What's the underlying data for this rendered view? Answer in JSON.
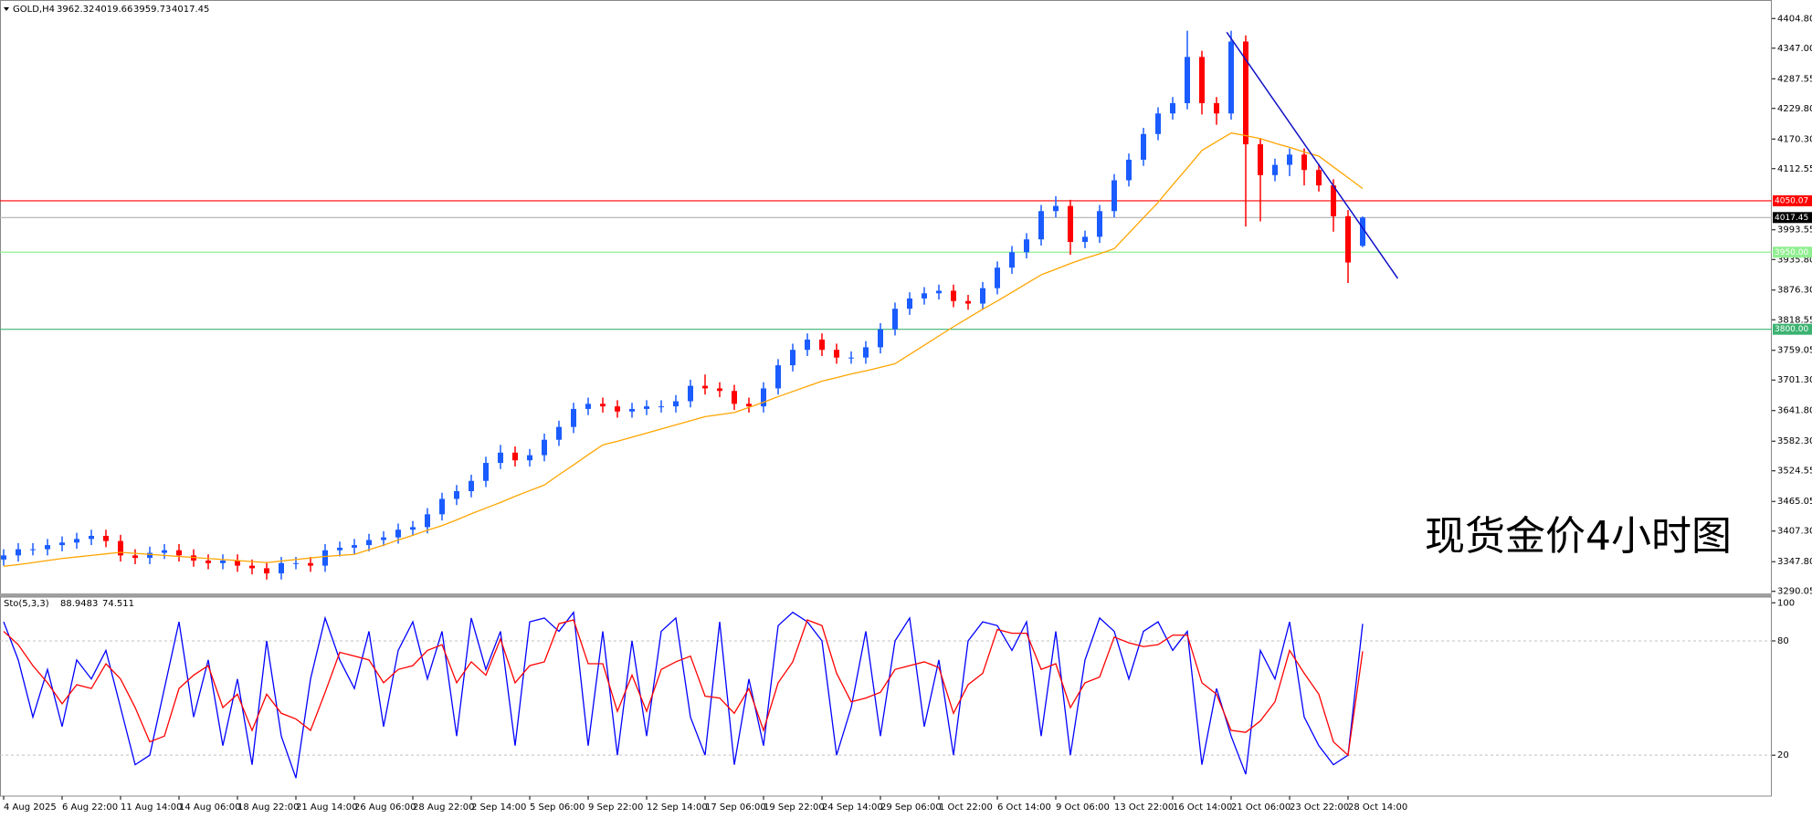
{
  "chart_data": {
    "type": "candlestick",
    "symbol": "GOLD,H4",
    "annotation": "现货金价4小时图",
    "up_color": "#1a5cff",
    "down_color": "#ff0000",
    "categories": [
      "4 Aug 2025",
      null,
      null,
      null,
      "6 Aug 22:00",
      null,
      null,
      null,
      "11 Aug 14:00",
      null,
      null,
      null,
      "14 Aug 06:00",
      null,
      null,
      null,
      "18 Aug 22:00",
      null,
      null,
      null,
      "21 Aug 14:00",
      null,
      null,
      null,
      "26 Aug 06:00",
      null,
      null,
      null,
      "28 Aug 22:00",
      null,
      null,
      null,
      "2 Sep 14:00",
      null,
      null,
      null,
      "5 Sep 06:00",
      null,
      null,
      null,
      "9 Sep 22:00",
      null,
      null,
      null,
      "12 Sep 14:00",
      null,
      null,
      null,
      "17 Sep 06:00",
      null,
      null,
      null,
      "19 Sep 22:00",
      null,
      null,
      null,
      "24 Sep 14:00",
      null,
      null,
      null,
      "29 Sep 06:00",
      null,
      null,
      null,
      "1 Oct 22:00",
      null,
      null,
      null,
      "6 Oct 14:00",
      null,
      null,
      null,
      "9 Oct 06:00",
      null,
      null,
      null,
      "13 Oct 22:00",
      null,
      null,
      null,
      "16 Oct 14:00",
      null,
      null,
      null,
      "21 Oct 06:00",
      null,
      null,
      null,
      "23 Oct 22:00",
      null,
      null,
      null,
      "28 Oct 14:00",
      null
    ],
    "open": [
      3352,
      3360,
      3372,
      3372,
      3380,
      3385,
      3392,
      3398,
      3388,
      3360,
      3355,
      3365,
      3370,
      3360,
      3350,
      3345,
      3350,
      3340,
      3335,
      3325,
      3345,
      3345,
      3340,
      3370,
      3375,
      3380,
      3390,
      3395,
      3410,
      3415,
      3440,
      3470,
      3485,
      3505,
      3540,
      3560,
      3545,
      3555,
      3585,
      3610,
      3645,
      3655,
      3650,
      3640,
      3645,
      3650,
      3650,
      3660,
      3690,
      3685,
      3680,
      3655,
      3650,
      3685,
      3730,
      3760,
      3780,
      3760,
      3745,
      3745,
      3765,
      3800,
      3840,
      3860,
      3870,
      3875,
      3855,
      3850,
      3880,
      3920,
      3950,
      3975,
      4030,
      4040,
      3970,
      3980,
      4030,
      4090,
      4130,
      4180,
      4220,
      4240,
      4330,
      4240,
      4220,
      4360,
      4160,
      4100,
      4120,
      4140,
      4110,
      4080,
      4020,
      3962.32
    ],
    "high": [
      3372,
      3384,
      3384,
      3392,
      3397,
      3404,
      3410,
      3410,
      3400,
      3372,
      3377,
      3382,
      3382,
      3372,
      3362,
      3362,
      3362,
      3352,
      3347,
      3357,
      3357,
      3357,
      3382,
      3387,
      3392,
      3402,
      3407,
      3422,
      3427,
      3452,
      3482,
      3497,
      3517,
      3552,
      3575,
      3572,
      3567,
      3597,
      3622,
      3657,
      3667,
      3667,
      3662,
      3657,
      3662,
      3662,
      3672,
      3702,
      3712,
      3697,
      3692,
      3667,
      3697,
      3742,
      3772,
      3792,
      3792,
      3772,
      3757,
      3777,
      3812,
      3852,
      3872,
      3882,
      3887,
      3887,
      3867,
      3892,
      3932,
      3962,
      3987,
      4042,
      4059,
      4052,
      3992,
      4042,
      4102,
      4142,
      4192,
      4232,
      4252,
      4381,
      4342,
      4252,
      4381,
      4372,
      4172,
      4132,
      4152,
      4152,
      4122,
      4092,
      4032,
      4019.66
    ],
    "low": [
      3340,
      3348,
      3360,
      3360,
      3368,
      3373,
      3380,
      3376,
      3348,
      3343,
      3343,
      3353,
      3348,
      3338,
      3333,
      3333,
      3328,
      3323,
      3313,
      3313,
      3333,
      3328,
      3328,
      3358,
      3363,
      3368,
      3378,
      3383,
      3398,
      3403,
      3428,
      3458,
      3473,
      3493,
      3528,
      3533,
      3533,
      3543,
      3573,
      3598,
      3633,
      3638,
      3628,
      3628,
      3633,
      3638,
      3638,
      3648,
      3673,
      3668,
      3643,
      3638,
      3638,
      3673,
      3718,
      3748,
      3748,
      3733,
      3733,
      3733,
      3753,
      3788,
      3828,
      3848,
      3858,
      3843,
      3838,
      3838,
      3868,
      3908,
      3938,
      3963,
      4018,
      3945,
      3958,
      3968,
      4018,
      4078,
      4118,
      4168,
      4208,
      4228,
      4218,
      4198,
      4208,
      4000,
      4010,
      4088,
      4098,
      4080,
      4068,
      3990,
      3890,
      3959.73
    ],
    "close": [
      3360,
      3372,
      3372,
      3380,
      3385,
      3392,
      3398,
      3388,
      3360,
      3355,
      3365,
      3370,
      3360,
      3350,
      3345,
      3350,
      3340,
      3335,
      3325,
      3345,
      3345,
      3340,
      3370,
      3375,
      3380,
      3390,
      3395,
      3410,
      3415,
      3440,
      3470,
      3485,
      3505,
      3540,
      3560,
      3545,
      3555,
      3585,
      3610,
      3645,
      3655,
      3650,
      3640,
      3645,
      3650,
      3650,
      3660,
      3690,
      3685,
      3680,
      3655,
      3650,
      3685,
      3730,
      3760,
      3780,
      3760,
      3745,
      3745,
      3765,
      3800,
      3840,
      3860,
      3870,
      3875,
      3855,
      3850,
      3880,
      3920,
      3950,
      3975,
      4030,
      4040,
      3970,
      3980,
      4030,
      4090,
      4130,
      4180,
      4220,
      4240,
      4330,
      4240,
      4220,
      4360,
      4160,
      4100,
      4120,
      4140,
      4110,
      4080,
      4020,
      3930,
      4017.45
    ],
    "ma": {
      "color": "#ffa500",
      "values": [
        3339,
        3342,
        3346,
        3350,
        3354,
        3357,
        3360,
        3363,
        3366,
        3364,
        3362,
        3360,
        3358,
        3356,
        3354,
        3352,
        3350,
        3348,
        3346,
        3349,
        3352,
        3355,
        3358,
        3360,
        3362,
        3371,
        3380,
        3390,
        3399,
        3409,
        3418,
        3429,
        3441,
        3452,
        3463,
        3475,
        3486,
        3497,
        3517,
        3536,
        3556,
        3575,
        3582,
        3590,
        3598,
        3606,
        3614,
        3622,
        3630,
        3634,
        3638,
        3648,
        3658,
        3669,
        3679,
        3689,
        3699,
        3706,
        3713,
        3719,
        3726,
        3733,
        3751,
        3769,
        3787,
        3805,
        3822,
        3839,
        3855,
        3872,
        3889,
        3906,
        3917,
        3928,
        3938,
        3947,
        3957,
        3987,
        4017,
        4047,
        4081,
        4114,
        4148,
        4165,
        4182,
        4177,
        4171,
        4162,
        4154,
        4145,
        4137,
        4116,
        4095,
        4074
      ]
    },
    "ylim": [
      3287.8,
      4440.8
    ],
    "yticks": [
      {
        "value": 4404.8,
        "label": "4404.80"
      },
      {
        "value": 4347,
        "label": "4347.00"
      },
      {
        "value": 4287.55,
        "label": "4287.55"
      },
      {
        "value": 4229.8,
        "label": "4229.80"
      },
      {
        "value": 4170.3,
        "label": "4170.30"
      },
      {
        "value": 4112.55,
        "label": "4112.55"
      },
      {
        "value": 3993.55,
        "label": "3993.55"
      },
      {
        "value": 3935.8,
        "label": "3935.80"
      },
      {
        "value": 3876.3,
        "label": "3876.30"
      },
      {
        "value": 3818.55,
        "label": "3818.55"
      },
      {
        "value": 3759.05,
        "label": "3759.05"
      },
      {
        "value": 3701.3,
        "label": "3701.30"
      },
      {
        "value": 3641.8,
        "label": "3641.80"
      },
      {
        "value": 3582.3,
        "label": "3582.30"
      },
      {
        "value": 3524.55,
        "label": "3524.55"
      },
      {
        "value": 3465.05,
        "label": "3465.05"
      },
      {
        "value": 3407.3,
        "label": "3407.30"
      },
      {
        "value": 3347.8,
        "label": "3347.80"
      },
      {
        "value": 3290.05,
        "label": "3290.05"
      }
    ],
    "hlines": {
      "values": [
        4050.07,
        4017.45,
        3950,
        3800
      ],
      "value_labels": [
        "4050.07",
        "4017.45",
        "3950.00",
        "3800.00"
      ],
      "colors": [
        "#ff0000",
        "#b0b0b0",
        "#90ee90",
        "#3cb371"
      ],
      "label_colors": [
        "#ff0000",
        "#000000",
        "#90ee90",
        "#3cb371"
      ]
    },
    "trendline": {
      "color": "#1010c8",
      "x": [
        83.7,
        95.4
      ],
      "y": [
        4378,
        3899
      ]
    },
    "indicator": {
      "name": "Sto(5,3,3)",
      "ylim": [
        -1,
        103
      ],
      "yticks": [
        100,
        80,
        20
      ],
      "levels": [
        80,
        20
      ],
      "series": [
        {
          "color": "#0000ff",
          "values": [
            90,
            70,
            40,
            65,
            35,
            70,
            60,
            75,
            45,
            15,
            20,
            55,
            90,
            40,
            70,
            25,
            60,
            15,
            80,
            30,
            8,
            60,
            92,
            70,
            55,
            85,
            35,
            75,
            90,
            60,
            85,
            30,
            92,
            65,
            85,
            25,
            90,
            92,
            85,
            95,
            25,
            85,
            20,
            80,
            30,
            85,
            92,
            40,
            20,
            90,
            15,
            60,
            25,
            88,
            95,
            90,
            80,
            20,
            45,
            85,
            30,
            80,
            92,
            35,
            70,
            20,
            80,
            90,
            88,
            75,
            90,
            30,
            85,
            20,
            70,
            92,
            85,
            60,
            85,
            90,
            75,
            85,
            15,
            55,
            30,
            10,
            75,
            60,
            90,
            40,
            25,
            15,
            20,
            88.9483
          ]
        },
        {
          "color": "#ff0000",
          "values": [
            85,
            78,
            67,
            58,
            47,
            57,
            55,
            68,
            60,
            45,
            27,
            30,
            55,
            62,
            67,
            45,
            52,
            33,
            52,
            42,
            39,
            33,
            53,
            74,
            72,
            70,
            58,
            65,
            67,
            75,
            78,
            58,
            69,
            62,
            81,
            58,
            67,
            69,
            89,
            91,
            68,
            68,
            43,
            62,
            43,
            65,
            69,
            72,
            51,
            50,
            42,
            55,
            33,
            58,
            69,
            91,
            88,
            63,
            48,
            50,
            53,
            65,
            67,
            69,
            66,
            42,
            57,
            63,
            86,
            84,
            84,
            65,
            68,
            45,
            58,
            61,
            82,
            79,
            77,
            78,
            83,
            83,
            58,
            52,
            33,
            32,
            38,
            48,
            75,
            63,
            52,
            27,
            20,
            74.511
          ]
        }
      ]
    }
  }
}
